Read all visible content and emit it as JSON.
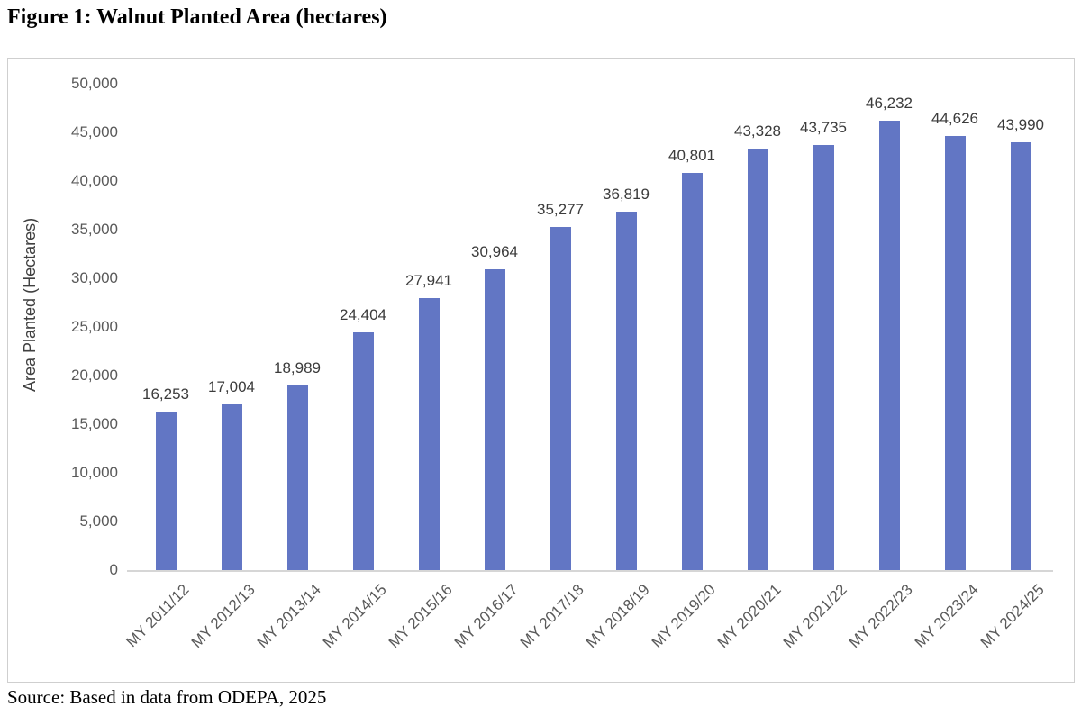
{
  "page": {
    "title": "Figure 1: Walnut Planted Area (hectares)",
    "source": "Source: Based in data from ODEPA, 2025"
  },
  "chart_data": {
    "type": "bar",
    "title": "Figure 1: Walnut Planted Area (hectares)",
    "categories": [
      "MY 2011/12",
      "MY 2012/13",
      "MY 2013/14",
      "MY 2014/15",
      "MY 2015/16",
      "MY 2016/17",
      "MY 2017/18",
      "MY 2018/19",
      "MY 2019/20",
      "MY 2020/21",
      "MY 2021/22",
      "MY 2022/23",
      "MY 2023/24",
      "MY 2024/25"
    ],
    "values": [
      16253,
      17004,
      18989,
      24404,
      27941,
      30964,
      35277,
      36819,
      40801,
      43328,
      43735,
      46232,
      44626,
      43990
    ],
    "value_labels": [
      "16,253",
      "17,004",
      "18,989",
      "24,404",
      "27,941",
      "30,964",
      "35,277",
      "36,819",
      "40,801",
      "43,328",
      "43,735",
      "46,232",
      "44,626",
      "43,990"
    ],
    "xlabel": "",
    "ylabel": "Area Planted (Hectares)",
    "ylim": [
      0,
      50000
    ],
    "ytick_step": 5000,
    "ytick_labels": [
      "0",
      "5,000",
      "10,000",
      "15,000",
      "20,000",
      "25,000",
      "30,000",
      "35,000",
      "40,000",
      "45,000",
      "50,000"
    ],
    "grid": false,
    "legend": false,
    "data_labels": true,
    "xtick_rotation_deg": -45,
    "colors": {
      "bar": "#6276C4",
      "axis_line": "#d6d6d6",
      "tick_text": "#595959",
      "data_label_text": "#3b3b3b",
      "frame_border": "#cfcfcf"
    },
    "source": "Source: Based in data from ODEPA, 2025"
  }
}
